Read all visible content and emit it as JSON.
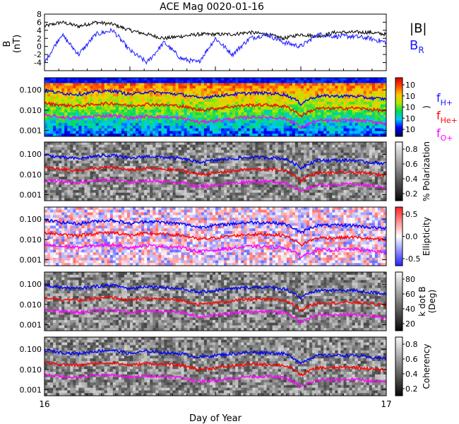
{
  "title": "ACE Mag 0020-01-16",
  "xlabel": "Day of Year",
  "x_ticks": [
    "16",
    "17"
  ],
  "colors": {
    "bmag": "#000000",
    "br": "#1a1aff",
    "fh": "#0000ff",
    "fhe": "#ff0000",
    "fo": "#ff00ff"
  },
  "legend_top": {
    "bmag": "|B|",
    "br_main": "B",
    "br_sub": "R"
  },
  "legend_freq": [
    {
      "main": "f",
      "sub": "H+",
      "color": "#1a1aff"
    },
    {
      "main": "f",
      "sub": "He+",
      "color": "#ff0000"
    },
    {
      "main": "f",
      "sub": "O+",
      "color": "#ff00ff"
    }
  ],
  "panels": [
    {
      "id": "power",
      "colorbar_label": ")",
      "colorbar_ticks": [
        "10",
        "10",
        "10",
        "10",
        "10"
      ],
      "colormap": "rainbow"
    },
    {
      "id": "polarization",
      "colorbar_label": "% Polarization",
      "colorbar_ticks": [
        "0.8",
        "0.6",
        "0.4",
        "0.2"
      ],
      "colormap": "gray"
    },
    {
      "id": "ellipticity",
      "colorbar_label": "Ellipticity",
      "colorbar_ticks": [
        "0.5",
        "0.0",
        "-0.5"
      ],
      "colormap": "bwr"
    },
    {
      "id": "kdotb",
      "colorbar_label_1": "k dot B",
      "colorbar_label_2": "(Deg)",
      "colorbar_ticks": [
        "80",
        "60",
        "40",
        "20"
      ],
      "colormap": "gray"
    },
    {
      "id": "coherency",
      "colorbar_label": "Coherency",
      "colorbar_ticks": [
        "0.8",
        "0.6",
        "0.4",
        "0.2"
      ],
      "colormap": "gray"
    }
  ],
  "chart_data": [
    {
      "type": "line",
      "ylabel_1": "B",
      "ylabel_2": "(nT)",
      "ylim": [
        -6,
        8
      ],
      "yticks": [
        -4,
        -2,
        0,
        2,
        4,
        6,
        8
      ],
      "x": [
        16.0,
        16.05,
        16.1,
        16.15,
        16.2,
        16.25,
        16.3,
        16.35,
        16.4,
        16.45,
        16.5,
        16.55,
        16.6,
        16.65,
        16.7,
        16.75,
        16.8,
        16.85,
        16.9,
        16.95,
        17.0
      ],
      "series": [
        {
          "name": "|B|",
          "values": [
            5,
            6,
            5,
            6,
            5.5,
            4,
            3,
            2,
            2.5,
            3,
            3,
            3,
            3.5,
            3,
            2,
            3,
            2.5,
            3.5,
            3.5,
            3.5,
            3
          ]
        },
        {
          "name": "BR",
          "values": [
            -4,
            3,
            -2,
            3,
            4,
            -1,
            -4,
            1,
            -3,
            -4,
            2,
            -2,
            2,
            3,
            1,
            0,
            3,
            2.5,
            2.5,
            2,
            1
          ]
        }
      ]
    },
    {
      "type": "heatmap",
      "ylabel": "",
      "yscale": "log",
      "ylim": [
        0.0005,
        0.4
      ],
      "yticks": [
        "0.100",
        "0.010",
        "0.001"
      ],
      "x": [
        16.0,
        16.05,
        16.1,
        16.15,
        16.2,
        16.25,
        16.3,
        16.35,
        16.4,
        16.45,
        16.5,
        16.55,
        16.6,
        16.65,
        16.7,
        16.75,
        16.8,
        16.85,
        16.9,
        16.95,
        17.0
      ],
      "series": [
        {
          "name": "fH+",
          "values": [
            0.09,
            0.07,
            0.06,
            0.08,
            0.09,
            0.06,
            0.08,
            0.07,
            0.06,
            0.04,
            0.05,
            0.06,
            0.07,
            0.07,
            0.06,
            0.02,
            0.05,
            0.05,
            0.05,
            0.04,
            0.035
          ]
        },
        {
          "name": "fHe+",
          "values": [
            0.022,
            0.018,
            0.016,
            0.02,
            0.022,
            0.016,
            0.02,
            0.018,
            0.016,
            0.01,
            0.012,
            0.015,
            0.018,
            0.018,
            0.016,
            0.005,
            0.012,
            0.012,
            0.013,
            0.011,
            0.009
          ]
        },
        {
          "name": "fO+",
          "values": [
            0.0055,
            0.0045,
            0.004,
            0.005,
            0.0055,
            0.004,
            0.005,
            0.0045,
            0.004,
            0.0025,
            0.003,
            0.0037,
            0.0045,
            0.0045,
            0.004,
            0.0013,
            0.003,
            0.003,
            0.0033,
            0.0028,
            0.0022
          ]
        }
      ]
    }
  ]
}
